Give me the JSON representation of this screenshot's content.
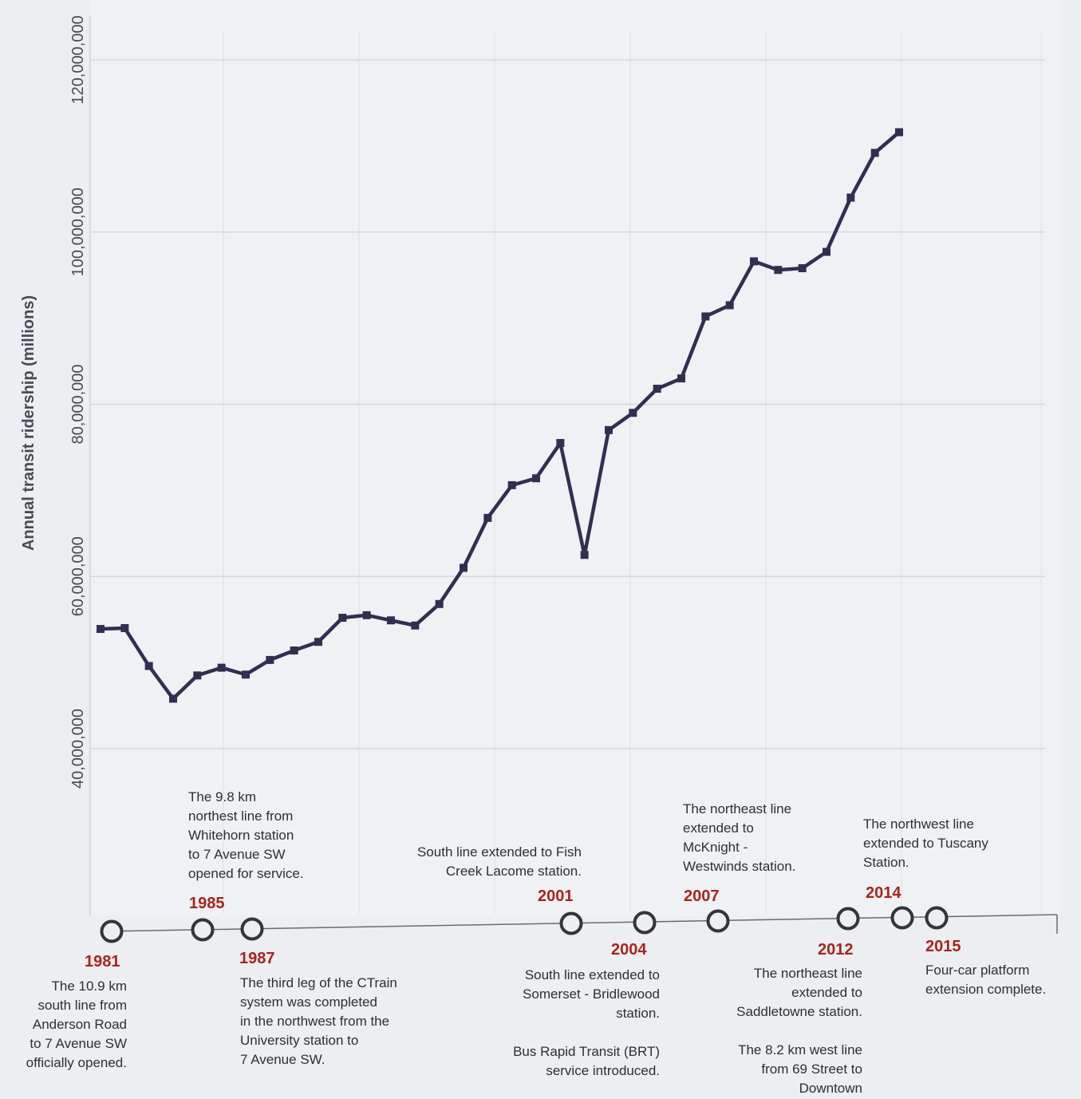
{
  "chart_data": {
    "type": "line",
    "ylabel": "Annual transit ridership (millions)",
    "ylim": [
      20000000,
      124000000
    ],
    "y_ticks": [
      {
        "value": 40000000,
        "label": "40,000,000"
      },
      {
        "value": 60000000,
        "label": "60,000,000"
      },
      {
        "value": 80000000,
        "label": "80,000,000"
      },
      {
        "value": 100000000,
        "label": "100,000,000"
      },
      {
        "value": 120000000,
        "label": "120,000,000"
      }
    ],
    "xlim": [
      1981,
      2015
    ],
    "grid": true,
    "line_color": "#2f3050",
    "x": [
      1981,
      1982,
      1983,
      1984,
      1985,
      1986,
      1987,
      1988,
      1989,
      1990,
      1991,
      1992,
      1993,
      1994,
      1995,
      1996,
      1997,
      1998,
      1999,
      2000,
      2001,
      2002,
      2003,
      2004,
      2005,
      2006,
      2007,
      2008,
      2009,
      2010,
      2011,
      2012,
      2013,
      2014,
      2015
    ],
    "values": [
      53900000,
      54000000,
      49600000,
      45800000,
      48500000,
      49400000,
      48600000,
      50300000,
      51400000,
      52400000,
      55200000,
      55500000,
      54900000,
      54300000,
      56800000,
      61000000,
      66800000,
      70600000,
      71400000,
      75500000,
      62500000,
      77000000,
      79000000,
      81800000,
      83000000,
      90200000,
      91500000,
      96600000,
      95600000,
      95800000,
      97700000,
      104000000,
      109200000,
      111600000,
      null
    ]
  },
  "timeline": {
    "axis_color": "#6a6a74",
    "year_color": "#a8241e",
    "events": [
      {
        "year": "1981",
        "lines": [
          "The 10.9 km",
          "south line from",
          "Anderson Road",
          "to 7 Avenue SW",
          "officially opened."
        ]
      },
      {
        "year": "1985",
        "lines": [
          "The 9.8 km",
          "northest line from",
          "Whitehorn station",
          "to 7 Avenue SW",
          "opened for service."
        ]
      },
      {
        "year": "1987",
        "lines": [
          "The third leg of the CTrain",
          "system was completed",
          "in the northwest from the",
          "University station to",
          "7 Avenue SW."
        ]
      },
      {
        "year": "2001",
        "lines": [
          "South line extended to Fish",
          "Creek Lacome station."
        ]
      },
      {
        "year": "2004",
        "lines": [
          "South line extended to",
          "Somerset - Bridlewood",
          "station."
        ],
        "lines2": [
          "Bus Rapid Transit (BRT)",
          "service introduced."
        ]
      },
      {
        "year": "2007",
        "lines": [
          "The northeast line",
          "extended to",
          "McKnight -",
          "Westwinds station."
        ]
      },
      {
        "year": "2012",
        "lines": [
          "The northeast line",
          "extended to",
          "Saddletowne station."
        ],
        "lines2": [
          "The 8.2 km west line",
          "from 69 Street to",
          "Downtown"
        ]
      },
      {
        "year": "2014",
        "lines": [
          "The northwest line",
          "extended to Tuscany",
          "Station."
        ]
      },
      {
        "year": "2015",
        "lines": [
          "Four-car platform",
          "extension complete."
        ]
      }
    ]
  }
}
